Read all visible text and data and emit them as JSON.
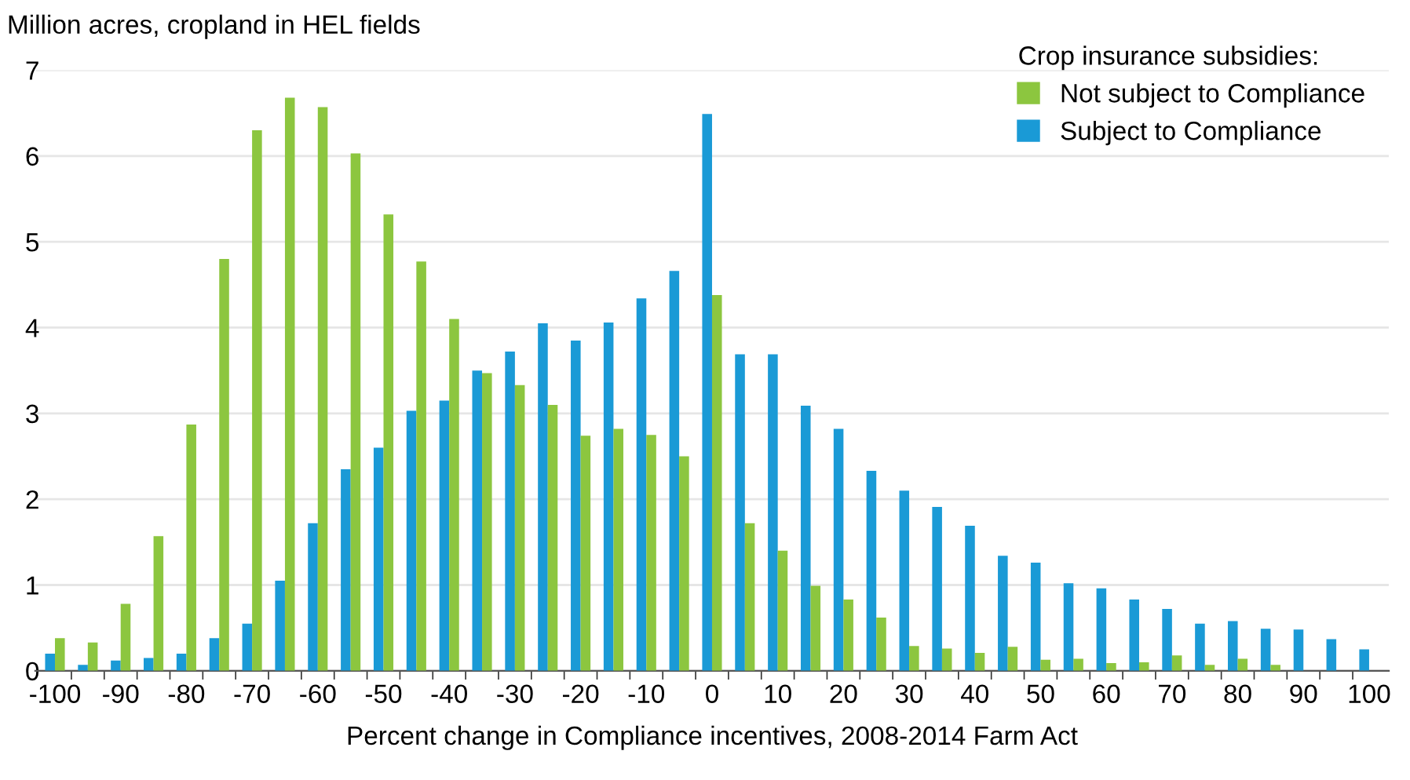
{
  "chart_data": {
    "type": "bar",
    "ylabel": "Million acres, cropland in HEL fields",
    "xlabel": "Percent change in Compliance incentives, 2008-2014 Farm Act",
    "legend_title": "Crop insurance subsidies:",
    "categories": [
      "-100",
      null,
      "-90",
      null,
      "-80",
      null,
      "-70",
      null,
      "-60",
      null,
      "-50",
      null,
      "-40",
      null,
      "-30",
      null,
      "-20",
      null,
      "-10",
      null,
      "0",
      null,
      "10",
      null,
      "20",
      null,
      "30",
      null,
      "40",
      null,
      "50",
      null,
      "60",
      null,
      "70",
      null,
      "80",
      null,
      "90",
      null,
      "100"
    ],
    "series": [
      {
        "name": "Subject to Compliance",
        "color": "#1a9ad6",
        "values": [
          0.2,
          0.07,
          0.12,
          0.15,
          0.2,
          0.38,
          0.55,
          1.05,
          1.72,
          2.35,
          2.6,
          3.03,
          3.15,
          3.5,
          3.72,
          4.05,
          3.85,
          4.06,
          4.34,
          4.66,
          6.49,
          3.69,
          3.69,
          3.09,
          2.82,
          2.33,
          2.1,
          1.91,
          1.69,
          1.34,
          1.26,
          1.02,
          0.96,
          0.83,
          0.72,
          0.55,
          0.58,
          0.49,
          0.48,
          0.37,
          0.25
        ]
      },
      {
        "name": "Not subject to Compliance",
        "color": "#8cc63f",
        "values": [
          0.38,
          0.33,
          0.78,
          1.57,
          2.87,
          4.8,
          6.3,
          6.68,
          6.57,
          6.03,
          5.32,
          4.77,
          4.1,
          3.47,
          3.33,
          3.1,
          2.74,
          2.82,
          2.75,
          2.5,
          4.38,
          1.72,
          1.4,
          0.99,
          0.83,
          0.62,
          0.29,
          0.26,
          0.21,
          0.28,
          0.13,
          0.14,
          0.09,
          0.1,
          0.18,
          0.07,
          0.14,
          0.07,
          null,
          null,
          null
        ]
      }
    ],
    "ylim": [
      0,
      7
    ],
    "yticks": [
      0,
      1,
      2,
      3,
      4,
      5,
      6,
      7
    ],
    "grid": "y",
    "legend": "top right"
  }
}
